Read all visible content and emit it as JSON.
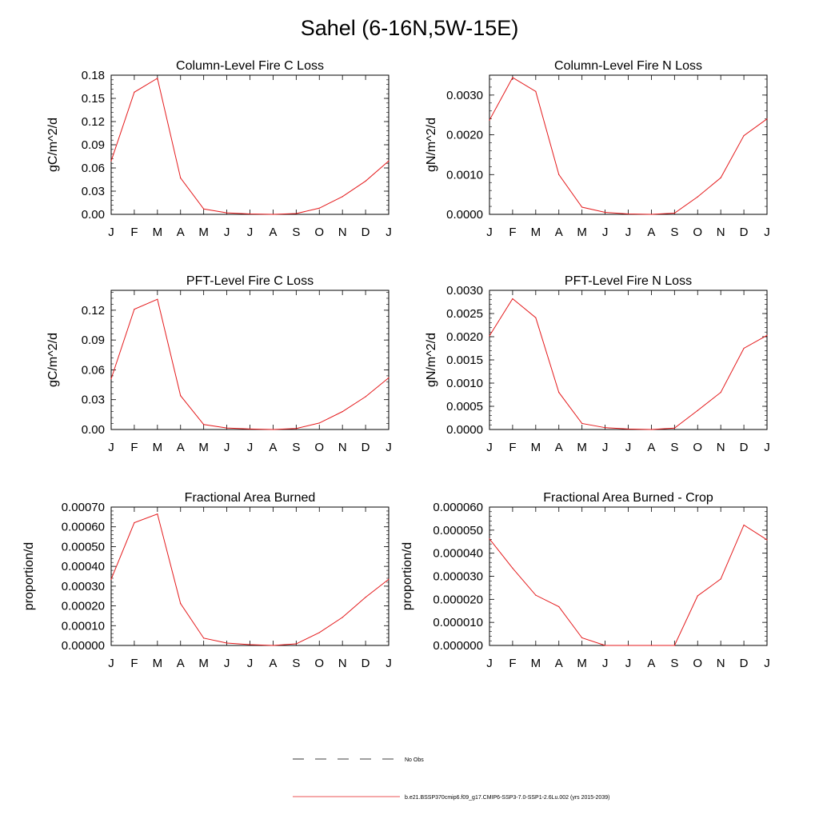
{
  "page": {
    "title": "Sahel (6-16N,5W-15E)"
  },
  "colors": {
    "model_line": "#e41a1c",
    "obs_line": "#000000",
    "axis": "#000000"
  },
  "months": [
    "J",
    "F",
    "M",
    "A",
    "M",
    "J",
    "J",
    "A",
    "S",
    "O",
    "N",
    "D",
    "J"
  ],
  "legend": {
    "obs_label": "No Obs",
    "model_label": "b.e21.BSSP370cmip6.f09_g17.CMIP6-SSP3-7.0-SSP1-2.6Lu.002 (yrs 2015-2039)"
  },
  "chart_data": [
    {
      "type": "line",
      "title": "Column-Level Fire C Loss",
      "ylabel": "gC/m^2/d",
      "ylim": [
        0,
        0.18
      ],
      "yticks": [
        "0.00",
        "0.03",
        "0.06",
        "0.09",
        "0.12",
        "0.15",
        "0.18"
      ],
      "values": [
        0.069,
        0.158,
        0.176,
        0.047,
        0.007,
        0.002,
        0.0005,
        0.0,
        0.001,
        0.008,
        0.023,
        0.043,
        0.069
      ]
    },
    {
      "type": "line",
      "title": "Column-Level Fire N Loss",
      "ylabel": "gN/m^2/d",
      "ylim": [
        0,
        0.0035
      ],
      "yticks": [
        "0.0000",
        "0.0010",
        "0.0020",
        "0.0030"
      ],
      "values": [
        0.00237,
        0.00344,
        0.00309,
        0.001,
        0.00018,
        5e-05,
        1e-05,
        0.0,
        3e-05,
        0.00044,
        0.00092,
        0.00198,
        0.0024
      ]
    },
    {
      "type": "line",
      "title": "PFT-Level Fire C Loss",
      "ylabel": "gC/m^2/d",
      "ylim": [
        0,
        0.14
      ],
      "yticks": [
        "0.00",
        "0.03",
        "0.06",
        "0.09",
        "0.12"
      ],
      "values": [
        0.051,
        0.121,
        0.131,
        0.034,
        0.005,
        0.0015,
        0.0005,
        0.0,
        0.001,
        0.0065,
        0.018,
        0.033,
        0.052
      ]
    },
    {
      "type": "line",
      "title": "PFT-Level Fire N Loss",
      "ylabel": "gN/m^2/d",
      "ylim": [
        0,
        0.003
      ],
      "yticks": [
        "0.0000",
        "0.0005",
        "0.0010",
        "0.0015",
        "0.0020",
        "0.0025",
        "0.0030"
      ],
      "values": [
        0.00202,
        0.00282,
        0.00241,
        0.0008,
        0.00013,
        4e-05,
        1e-05,
        0.0,
        3e-05,
        0.00041,
        0.0008,
        0.00175,
        0.00203
      ]
    },
    {
      "type": "line",
      "title": "Fractional Area Burned",
      "ylabel": "proportion/d",
      "ylim": [
        0,
        0.0007
      ],
      "yticks": [
        "0.00000",
        "0.00010",
        "0.00020",
        "0.00030",
        "0.00040",
        "0.00050",
        "0.00060",
        "0.00070"
      ],
      "values": [
        0.000335,
        0.000621,
        0.000665,
        0.000212,
        3.7e-05,
        1.2e-05,
        4e-06,
        0.0,
        8e-06,
        6.5e-05,
        0.000142,
        0.000244,
        0.000335
      ]
    },
    {
      "type": "line",
      "title": "Fractional Area Burned - Crop",
      "ylabel": "proportion/d",
      "ylim": [
        0,
        6e-05
      ],
      "yticks": [
        "0.000000",
        "0.000010",
        "0.000020",
        "0.000030",
        "0.000040",
        "0.000050",
        "0.000060"
      ],
      "values": [
        4.62e-05,
        3.35e-05,
        2.18e-05,
        1.68e-05,
        3.3e-06,
        0.0,
        0.0,
        0.0,
        0.0,
        2.15e-05,
        2.88e-05,
        5.22e-05,
        4.58e-05
      ]
    }
  ]
}
